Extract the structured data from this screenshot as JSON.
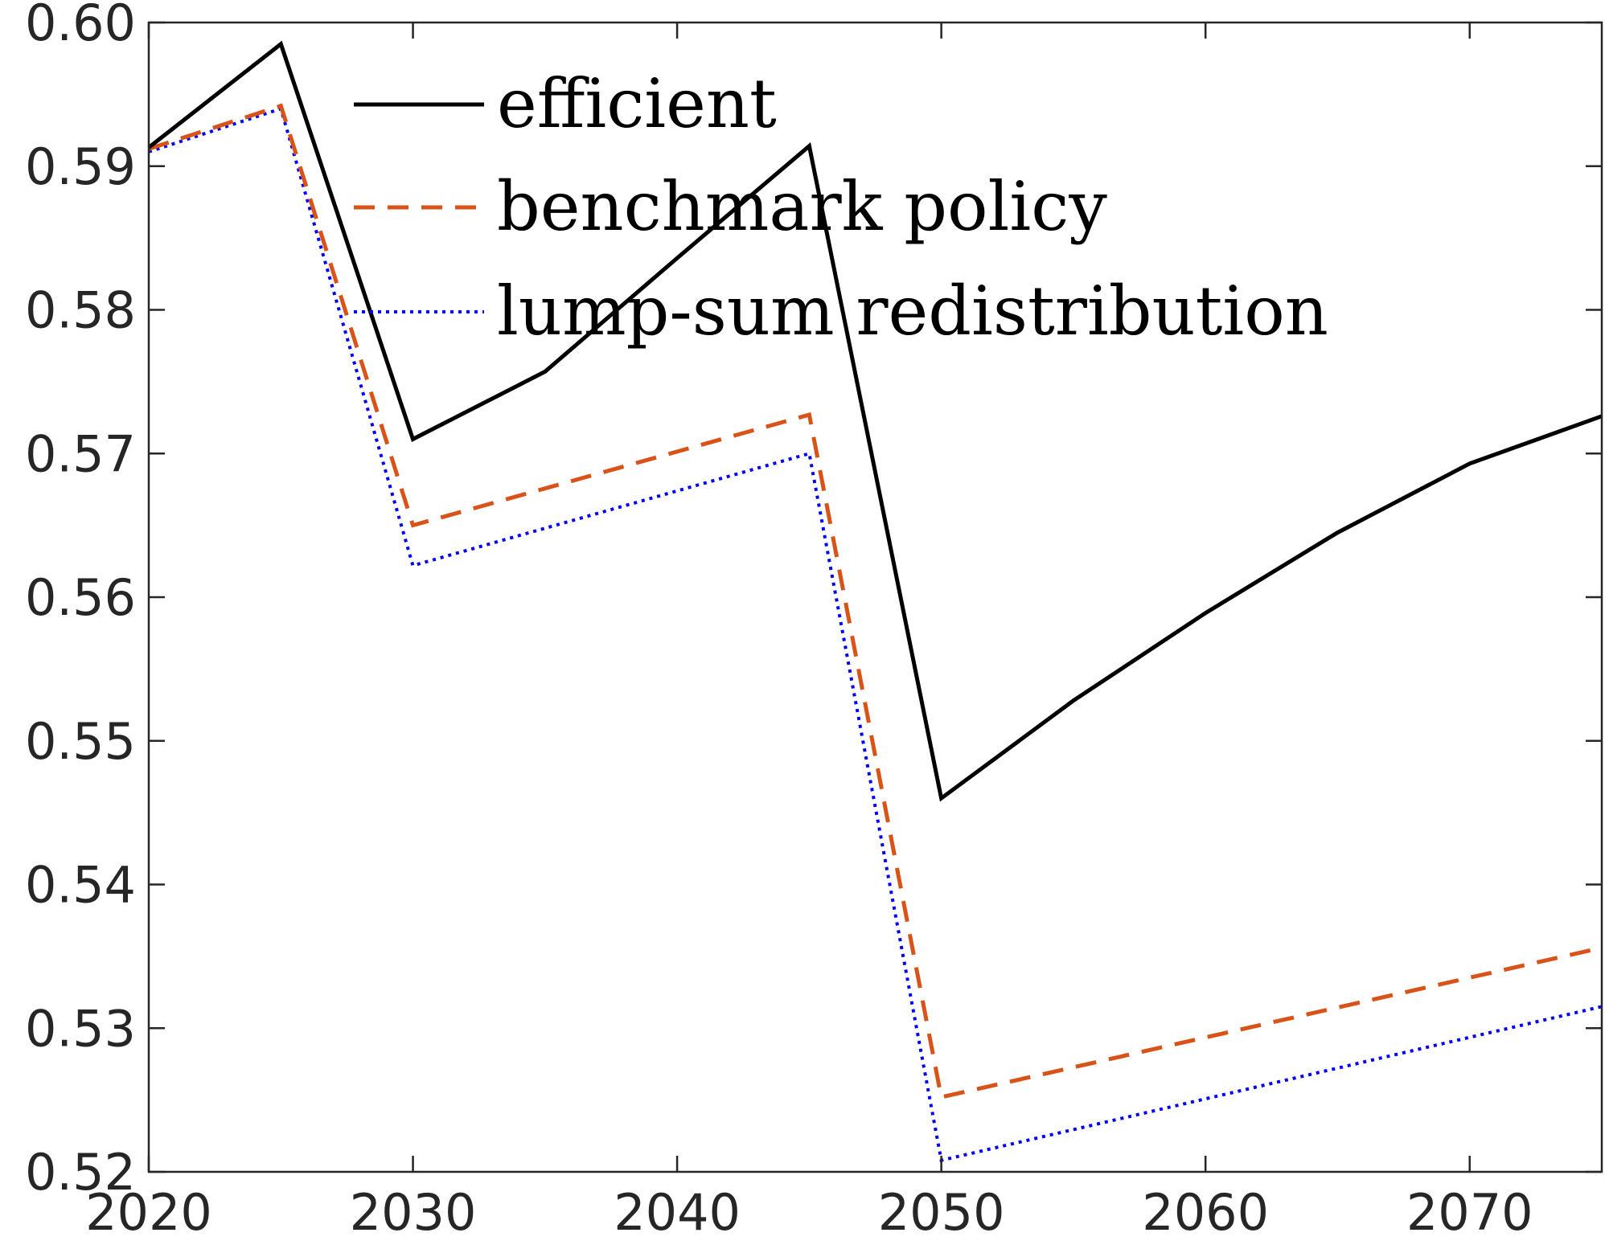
{
  "chart_data": {
    "type": "line",
    "title": "",
    "xlabel": "",
    "ylabel": "",
    "xlim": [
      2020,
      2075
    ],
    "ylim": [
      0.52,
      0.6
    ],
    "xticks": [
      2020,
      2030,
      2040,
      2050,
      2060,
      2070
    ],
    "xtick_labels": [
      "2020",
      "2030",
      "2040",
      "2050",
      "2060",
      "2070"
    ],
    "yticks": [
      0.52,
      0.53,
      0.54,
      0.55,
      0.56,
      0.57,
      0.58,
      0.59,
      0.6
    ],
    "ytick_labels": [
      "0.52",
      "0.53",
      "0.54",
      "0.55",
      "0.56",
      "0.57",
      "0.58",
      "0.59",
      "0.60"
    ],
    "grid": false,
    "legend_position": "top",
    "series": [
      {
        "name": "efficient",
        "style": "solid",
        "color": "#000000",
        "x": [
          2020,
          2025,
          2030,
          2035,
          2040,
          2045,
          2050,
          2055,
          2060,
          2065,
          2070,
          2075
        ],
        "y": [
          0.5913,
          0.5985,
          0.571,
          0.5757,
          0.5836,
          0.5914,
          0.546,
          0.5528,
          0.5589,
          0.5645,
          0.5693,
          0.5726
        ]
      },
      {
        "name": "benchmark policy",
        "style": "dashed",
        "color": "#D95319",
        "x": [
          2020,
          2025,
          2030,
          2045,
          2050,
          2075
        ],
        "y": [
          0.5912,
          0.5942,
          0.565,
          0.5727,
          0.5252,
          0.5356
        ]
      },
      {
        "name": "lump-sum redistribution",
        "style": "dotted",
        "color": "#0000FF",
        "x": [
          2020,
          2025,
          2030,
          2045,
          2050,
          2075
        ],
        "y": [
          0.591,
          0.594,
          0.5622,
          0.57,
          0.5208,
          0.5315
        ]
      }
    ]
  }
}
